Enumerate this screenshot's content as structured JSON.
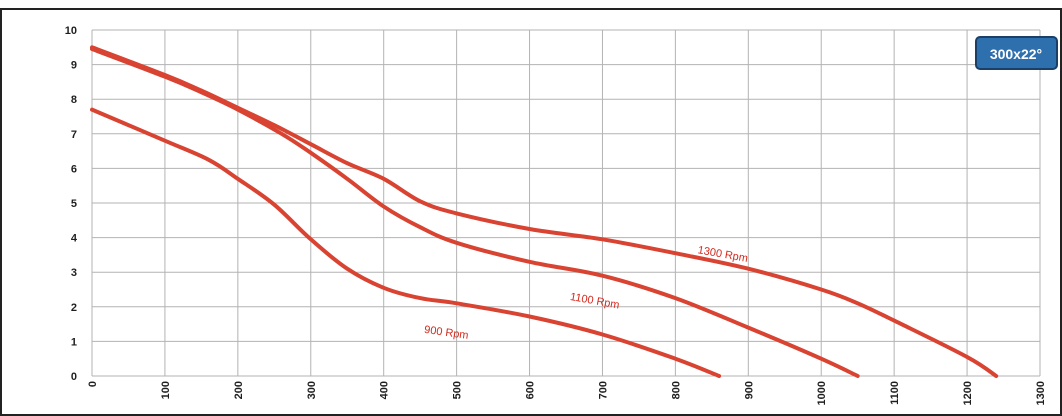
{
  "chart_data": {
    "type": "line",
    "title": "",
    "xlabel": "",
    "ylabel": "",
    "xlim": [
      0,
      1300
    ],
    "ylim": [
      0,
      10
    ],
    "x_ticks": [
      "0",
      "100",
      "200",
      "300",
      "400",
      "500",
      "600",
      "700",
      "800",
      "900",
      "1000",
      "1100",
      "1200",
      "1300"
    ],
    "y_ticks": [
      "0",
      "1",
      "2",
      "3",
      "4",
      "5",
      "6",
      "7",
      "8",
      "9",
      "10"
    ],
    "grid": true,
    "badge": "300x22°",
    "colors": {
      "curve": "#d94332",
      "label": "#d42a1e",
      "badge_fill": "#2e6fae",
      "badge_border": "#1b3f66"
    },
    "series": [
      {
        "name": "900 Rpm",
        "x": [
          0,
          100,
          160,
          200,
          250,
          300,
          350,
          400,
          450,
          500,
          600,
          700,
          800,
          860
        ],
        "y": [
          7.7,
          6.8,
          6.25,
          5.7,
          4.95,
          3.95,
          3.1,
          2.55,
          2.25,
          2.1,
          1.72,
          1.2,
          0.5,
          0.0
        ]
      },
      {
        "name": "1100 Rpm",
        "x": [
          0,
          100,
          150,
          200,
          260,
          300,
          350,
          400,
          450,
          500,
          600,
          700,
          800,
          900,
          1000,
          1050
        ],
        "y": [
          9.45,
          8.65,
          8.2,
          7.7,
          7.0,
          6.45,
          5.7,
          4.9,
          4.3,
          3.85,
          3.3,
          2.9,
          2.25,
          1.4,
          0.5,
          0.0
        ]
      },
      {
        "name": "1300 Rpm",
        "x": [
          0,
          100,
          150,
          200,
          250,
          300,
          350,
          400,
          450,
          500,
          600,
          700,
          800,
          900,
          1000,
          1050,
          1100,
          1200,
          1240
        ],
        "y": [
          9.5,
          8.7,
          8.25,
          7.75,
          7.25,
          6.7,
          6.15,
          5.7,
          5.05,
          4.7,
          4.25,
          3.95,
          3.55,
          3.1,
          2.5,
          2.1,
          1.6,
          0.55,
          0.0
        ]
      }
    ],
    "annotations": [
      {
        "text": "900 Rpm",
        "x": 455,
        "y": 1.25,
        "angle": 8
      },
      {
        "text": "1100 Rpm",
        "x": 655,
        "y": 2.2,
        "angle": 10
      },
      {
        "text": "1300 Rpm",
        "x": 830,
        "y": 3.55,
        "angle": 10
      }
    ]
  }
}
